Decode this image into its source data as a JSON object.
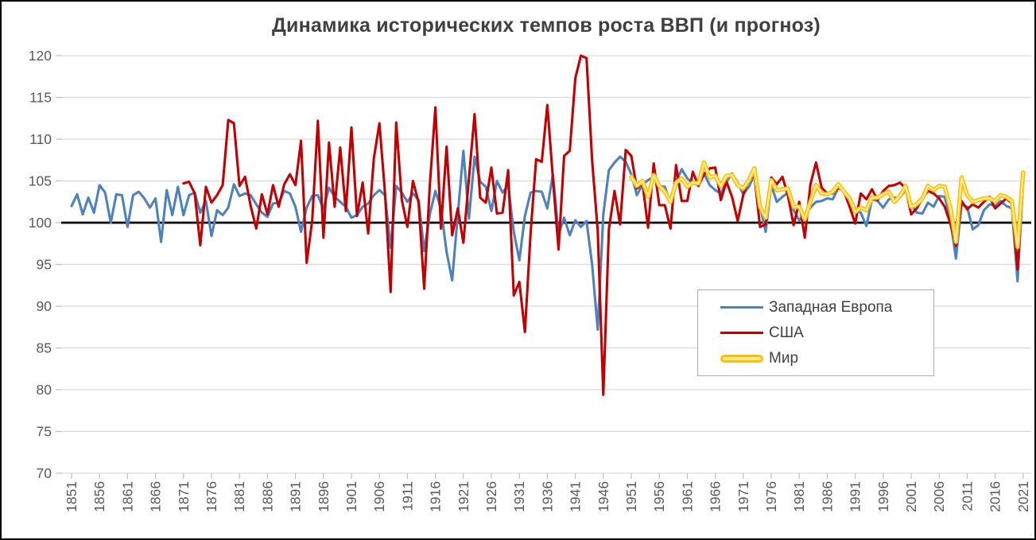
{
  "chart_data": {
    "type": "line",
    "title": "Динамика исторических темпов роста ВВП (и прогноз)",
    "xlabel": "",
    "ylabel": "",
    "ylim": [
      70,
      120
    ],
    "yticks": [
      70,
      75,
      80,
      85,
      90,
      95,
      100,
      105,
      110,
      115,
      120
    ],
    "xticks": [
      1851,
      1856,
      1861,
      1866,
      1871,
      1876,
      1881,
      1886,
      1891,
      1896,
      1901,
      1906,
      1911,
      1916,
      1921,
      1926,
      1931,
      1936,
      1941,
      1946,
      1951,
      1956,
      1961,
      1966,
      1971,
      1976,
      1981,
      1986,
      1991,
      1996,
      2001,
      2006,
      2011,
      2016,
      2021
    ],
    "baseline": 100,
    "grid": "horizontal",
    "legend_position": "inside-right",
    "colors": {
      "gridline": "#d9d9d9",
      "tick_mark": "#bfbfbf",
      "axis_label": "#595959",
      "baseline": "#000000",
      "title": "#404040"
    },
    "series": [
      {
        "key": "europe",
        "name": "Западная Европа",
        "color": "#4f81bd",
        "start_year": 1851,
        "values": [
          102,
          103.4,
          101,
          103,
          101.2,
          104.5,
          103.6,
          100,
          103.4,
          103.3,
          99.5,
          103.3,
          103.7,
          102.9,
          101.8,
          102.9,
          97.7,
          103.9,
          100.9,
          104.3,
          100.9,
          103.3,
          103.6,
          101.2,
          102.6,
          98.4,
          101.5,
          100.9,
          101.8,
          104.6,
          103.2,
          103.5,
          103.3,
          102.2,
          101.2,
          100.7,
          102.3,
          102.4,
          103.8,
          103.5,
          101.9,
          98.9,
          101.8,
          103.2,
          103.3,
          101.6,
          104.2,
          103.1,
          102.5,
          101.9,
          100.6,
          100.9,
          101.9,
          102.3,
          103.3,
          103.9,
          103.3,
          97,
          104.4,
          103.6,
          102.5,
          103.5,
          102.7,
          96.6,
          101,
          103.8,
          101.7,
          96.5,
          93.1,
          101,
          108.6,
          100.5,
          107.9,
          104.9,
          104.3,
          101.4,
          105,
          103.6,
          104.5,
          98.9,
          95.5,
          100.8,
          103.6,
          103.8,
          103.7,
          101.7,
          105.8,
          98.6,
          100.6,
          98.5,
          100.3,
          99.5,
          100.2,
          95,
          87.2,
          101,
          106.3,
          107.2,
          107.9,
          107.3,
          105.8,
          103.3,
          104.6,
          105.1,
          105.5,
          104.4,
          104.3,
          102.4,
          104.9,
          106.4,
          105.3,
          104.7,
          104.5,
          105.9,
          104.5,
          103.9,
          103.5,
          104.9,
          105.9,
          104.8,
          103.4,
          104.3,
          105.7,
          102,
          98.9,
          104.5,
          102.5,
          103.1,
          103.6,
          101.5,
          100.3,
          100.9,
          101.8,
          102.5,
          102.6,
          102.9,
          102.8,
          104.2,
          103.7,
          103.1,
          101.7,
          101.2,
          99.6,
          102.8,
          102.6,
          101.8,
          102.8,
          103,
          103,
          103.9,
          102.2,
          101.2,
          101.1,
          102.4,
          101.9,
          103.2,
          103.1,
          100.4,
          95.7,
          102.2,
          101.9,
          99.2,
          99.7,
          101.5,
          102.2,
          102,
          102.6,
          102,
          101.7,
          93,
          104.8
        ]
      },
      {
        "key": "usa",
        "name": "США",
        "color": "#c00000",
        "start_year": 1871,
        "values": [
          104.7,
          104.9,
          103.5,
          97.3,
          104.3,
          102.4,
          103.3,
          104.5,
          112.3,
          111.9,
          104.4,
          105.5,
          102,
          99.3,
          103.4,
          101,
          104.5,
          101.9,
          104.6,
          105.8,
          104.5,
          109.8,
          95.2,
          100.3,
          112.2,
          98.2,
          109.6,
          101.9,
          109,
          101.4,
          111.4,
          100.8,
          104.8,
          98.7,
          107.7,
          111.9,
          103.6,
          91.7,
          112,
          102.7,
          99.5,
          105,
          102.4,
          92.1,
          104.5,
          113.8,
          99.3,
          109.1,
          98.5,
          101.7,
          97.6,
          105.3,
          113,
          103,
          102.4,
          106.6,
          101.1,
          101.2,
          106.3,
          91.3,
          92.9,
          86.9,
          98.7,
          107.6,
          107.3,
          114.1,
          105.3,
          96.8,
          108,
          108.6,
          117.3,
          120,
          119.7,
          107.5,
          99,
          79.4,
          99.2,
          103.8,
          99.8,
          108.7,
          108,
          104.1,
          104.7,
          99.4,
          107.1,
          102.1,
          102.1,
          99.3,
          106.9,
          102.6,
          102.6,
          106.1,
          104.4,
          105.8,
          106.5,
          106.6,
          102.7,
          104.9,
          103.1,
          100.2,
          103.3,
          105.3,
          105.6,
          99.5,
          99.8,
          105.4,
          104.6,
          105.5,
          103.2,
          99.7,
          102.5,
          98.2,
          104.6,
          107.2,
          104.2,
          103.5,
          103.5,
          104.2,
          103.7,
          101.9,
          99.9,
          103.5,
          102.8,
          104,
          102.7,
          103.8,
          104.4,
          104.5,
          104.8,
          104.1,
          101,
          101.7,
          102.9,
          103.8,
          103.5,
          102.9,
          101.9,
          99.9,
          97.2,
          102.6,
          101.6,
          102.2,
          101.8,
          102.5,
          103.1,
          101.7,
          102.3,
          102.9,
          102.3,
          94.4,
          105.6
        ]
      },
      {
        "key": "world",
        "name": "Мир",
        "color": "#ffc000",
        "core_color": "#ffeb9c",
        "start_year": 1951,
        "values": [
          105.5,
          104.4,
          105,
          103.1,
          105.7,
          104.4,
          103.7,
          102.5,
          104.8,
          105.3,
          104.3,
          104.8,
          104.7,
          107.2,
          105.4,
          105.6,
          104.4,
          105.6,
          105.7,
          104.5,
          104.1,
          105.1,
          106.5,
          101.9,
          100.6,
          105.1,
          103.9,
          104,
          104.1,
          101.9,
          101.9,
          100.4,
          102.5,
          104.5,
          103.5,
          103.4,
          103.7,
          104.6,
          103.7,
          102.9,
          101.3,
          101.8,
          101.5,
          103,
          103,
          103.4,
          103.7,
          102.5,
          103.2,
          104.4,
          101.9,
          102.2,
          102.9,
          104.4,
          103.9,
          104.4,
          104.3,
          101.8,
          97.7,
          105.4,
          103.3,
          102.5,
          102.7,
          102.9,
          102.9,
          102.6,
          103.3,
          103.1,
          102.6,
          97.1,
          106
        ]
      }
    ]
  }
}
